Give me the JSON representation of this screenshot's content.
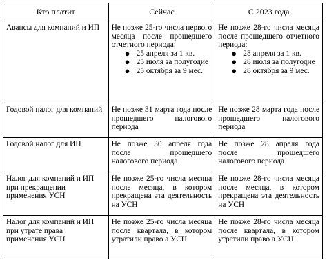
{
  "headers": {
    "who": "Кто платит",
    "now": "Сейчас",
    "from2023": "С 2023 года"
  },
  "rows": [
    {
      "who": "Авансы для компаний и ИП",
      "now_intro": "Не позже 25-го числа первого месяца после прошедшего отчетного периода:",
      "now_items": [
        "25 апреля за 1 кв.",
        "25 июля за полугодие",
        "25 октября за 9 мес."
      ],
      "from2023_intro": "Не позже 28-го числа месяца после прошедшего отчетного периода:",
      "from2023_items": [
        "28 апреля за 1 кв.",
        "28 июля за полугодие",
        "28 октября за 9 мес."
      ]
    },
    {
      "who": "Годовой налог для компаний",
      "now": "Не позже 31 марта года после прошедшего налогового периода",
      "from2023": "Не позже 28 марта года после прошедшего налогового периода"
    },
    {
      "who": "Годовой налог для ИП",
      "now": "Не позже 30 апреля года после прошедшего налогового периода",
      "from2023": "Не позже 28 апреля года после прошедшего налогового периода"
    },
    {
      "who": "Налог для компаний и ИП при прекращении применения УСН",
      "now": "Не позже 25-го числа месяца после месяца, в котором прекращена эта деятельность на УСН",
      "from2023": "Не позже 28-го числа месяца после месяца, в котором прекращена эта деятельность на УСН"
    },
    {
      "who": "Налог для компаний и ИП при утрате права применения УСН",
      "now": "Не позже 25-го числа месяца после квартала, в котором утратили право а УСН",
      "from2023": "Не позже 28-го числа месяца после квартала, в котором утратили право а УСН"
    }
  ],
  "bullet_glyph": "●"
}
